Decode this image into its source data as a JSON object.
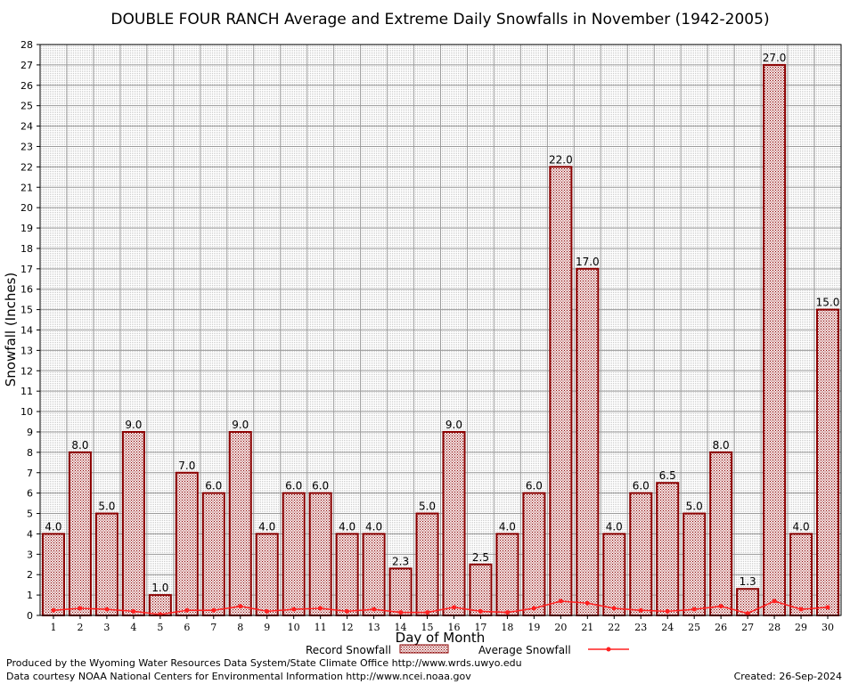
{
  "chart_data": {
    "type": "bar",
    "title": "DOUBLE FOUR RANCH Average and Extreme Daily Snowfalls in November (1942-2005)",
    "xlabel": "Day of Month",
    "ylabel": "Snowfall (Inches)",
    "ylim": [
      0,
      28
    ],
    "yticks": [
      "0",
      "1",
      "2",
      "3",
      "4",
      "5",
      "6",
      "7",
      "8",
      "9",
      "10",
      "11",
      "12",
      "13",
      "14",
      "15",
      "16",
      "17",
      "18",
      "19",
      "20",
      "21",
      "22",
      "23",
      "24",
      "25",
      "26",
      "27",
      "28"
    ],
    "categories": [
      "1",
      "2",
      "3",
      "4",
      "5",
      "6",
      "7",
      "8",
      "9",
      "10",
      "11",
      "12",
      "13",
      "14",
      "15",
      "16",
      "17",
      "18",
      "19",
      "20",
      "21",
      "22",
      "23",
      "24",
      "25",
      "26",
      "27",
      "28",
      "29",
      "30"
    ],
    "series": [
      {
        "name": "Record Snowfall",
        "kind": "bar",
        "color": "#8b0000",
        "values": [
          4.0,
          8.0,
          5.0,
          9.0,
          1.0,
          7.0,
          6.0,
          9.0,
          4.0,
          6.0,
          6.0,
          4.0,
          4.0,
          2.3,
          5.0,
          9.0,
          2.5,
          4.0,
          6.0,
          22.0,
          17.0,
          4.0,
          6.0,
          6.5,
          5.0,
          8.0,
          1.3,
          27.0,
          4.0,
          15.0
        ],
        "labels": [
          "4.0",
          "8.0",
          "5.0",
          "9.0",
          "1.0",
          "7.0",
          "6.0",
          "9.0",
          "4.0",
          "6.0",
          "6.0",
          "4.0",
          "4.0",
          "2.3",
          "5.0",
          "9.0",
          "2.5",
          "4.0",
          "6.0",
          "22.0",
          "17.0",
          "4.0",
          "6.0",
          "6.5",
          "5.0",
          "8.0",
          "1.3",
          "27.0",
          "4.0",
          "15.0"
        ]
      },
      {
        "name": "Average Snowfall",
        "kind": "line",
        "color": "#ff2020",
        "values": [
          0.25,
          0.35,
          0.3,
          0.2,
          0.05,
          0.25,
          0.25,
          0.45,
          0.2,
          0.3,
          0.35,
          0.2,
          0.3,
          0.15,
          0.15,
          0.4,
          0.2,
          0.15,
          0.35,
          0.7,
          0.6,
          0.35,
          0.25,
          0.2,
          0.3,
          0.45,
          0.1,
          0.7,
          0.3,
          0.4
        ]
      }
    ],
    "grid": true,
    "legend": "bottom-center"
  },
  "footer": {
    "produced_by": "Produced by the Wyoming Water Resources Data System/State Climate Office http://www.wrds.uwyo.edu",
    "data_courtesy": "Data courtesy NOAA National Centers for Environmental Information http://www.ncei.noaa.gov",
    "created": "Created:  26-Sep-2024"
  }
}
